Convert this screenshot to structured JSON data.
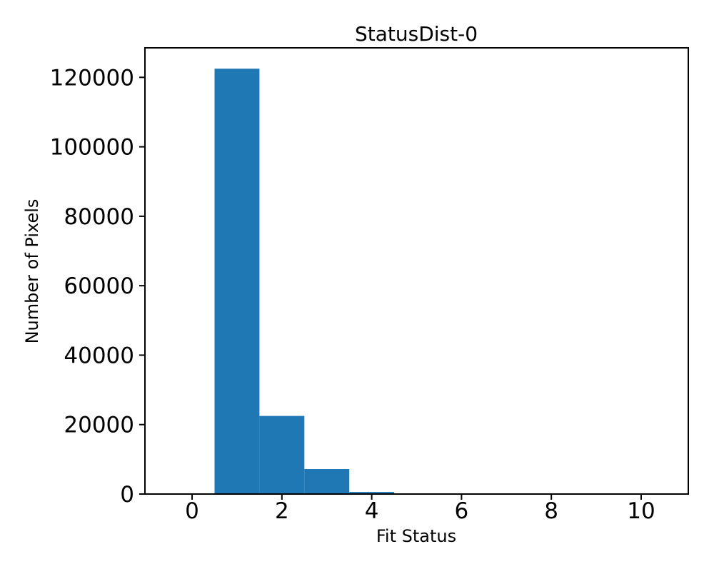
{
  "figure": {
    "background_color": "#ffffff"
  },
  "chart_data": {
    "type": "bar",
    "chart_style": "histogram",
    "title": "StatusDist-0",
    "xlabel": "Fit Status",
    "ylabel": "Number of Pixels",
    "bin_edges": [
      -0.5,
      0.5,
      1.5,
      2.5,
      3.5,
      4.5,
      5.5,
      6.5,
      7.5,
      8.5,
      9.5,
      10.5
    ],
    "bin_centers": [
      0,
      1,
      2,
      3,
      4,
      5,
      6,
      7,
      8,
      9,
      10
    ],
    "counts": [
      0,
      122500,
      22500,
      7200,
      600,
      0,
      0,
      0,
      0,
      0,
      0
    ],
    "xticks": [
      0,
      2,
      4,
      6,
      8,
      10
    ],
    "yticks": [
      0,
      20000,
      40000,
      60000,
      80000,
      100000,
      120000
    ],
    "xlim": [
      -1.05,
      11.05
    ],
    "ylim": [
      0,
      128500
    ],
    "bar_color": "#1f77b4",
    "axis_color": "#000000",
    "grid": false,
    "legend_position": "none"
  }
}
